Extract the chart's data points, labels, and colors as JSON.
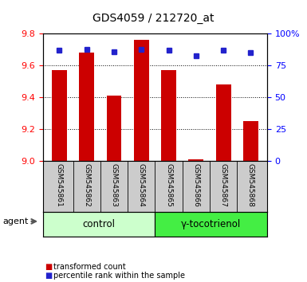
{
  "title": "GDS4059 / 212720_at",
  "samples": [
    "GSM545861",
    "GSM545862",
    "GSM545863",
    "GSM545864",
    "GSM545865",
    "GSM545866",
    "GSM545867",
    "GSM545868"
  ],
  "red_values": [
    9.57,
    9.68,
    9.41,
    9.76,
    9.57,
    9.01,
    9.48,
    9.25
  ],
  "blue_values": [
    87,
    88,
    86,
    88,
    87,
    83,
    87,
    85
  ],
  "y_min": 9.0,
  "y_max": 9.8,
  "y_ticks": [
    9.0,
    9.2,
    9.4,
    9.6,
    9.8
  ],
  "y2_ticks": [
    0,
    25,
    50,
    75,
    100
  ],
  "bar_color": "#cc0000",
  "dot_color": "#2222cc",
  "control_label": "control",
  "treatment_label": "γ-tocotrienol",
  "agent_label": "agent",
  "legend_red": "transformed count",
  "legend_blue": "percentile rank within the sample",
  "control_bg": "#ccffcc",
  "treatment_bg": "#44ee44",
  "sample_bg": "#cccccc",
  "title_fontsize": 10,
  "tick_fontsize": 8,
  "label_fontsize": 8.5
}
